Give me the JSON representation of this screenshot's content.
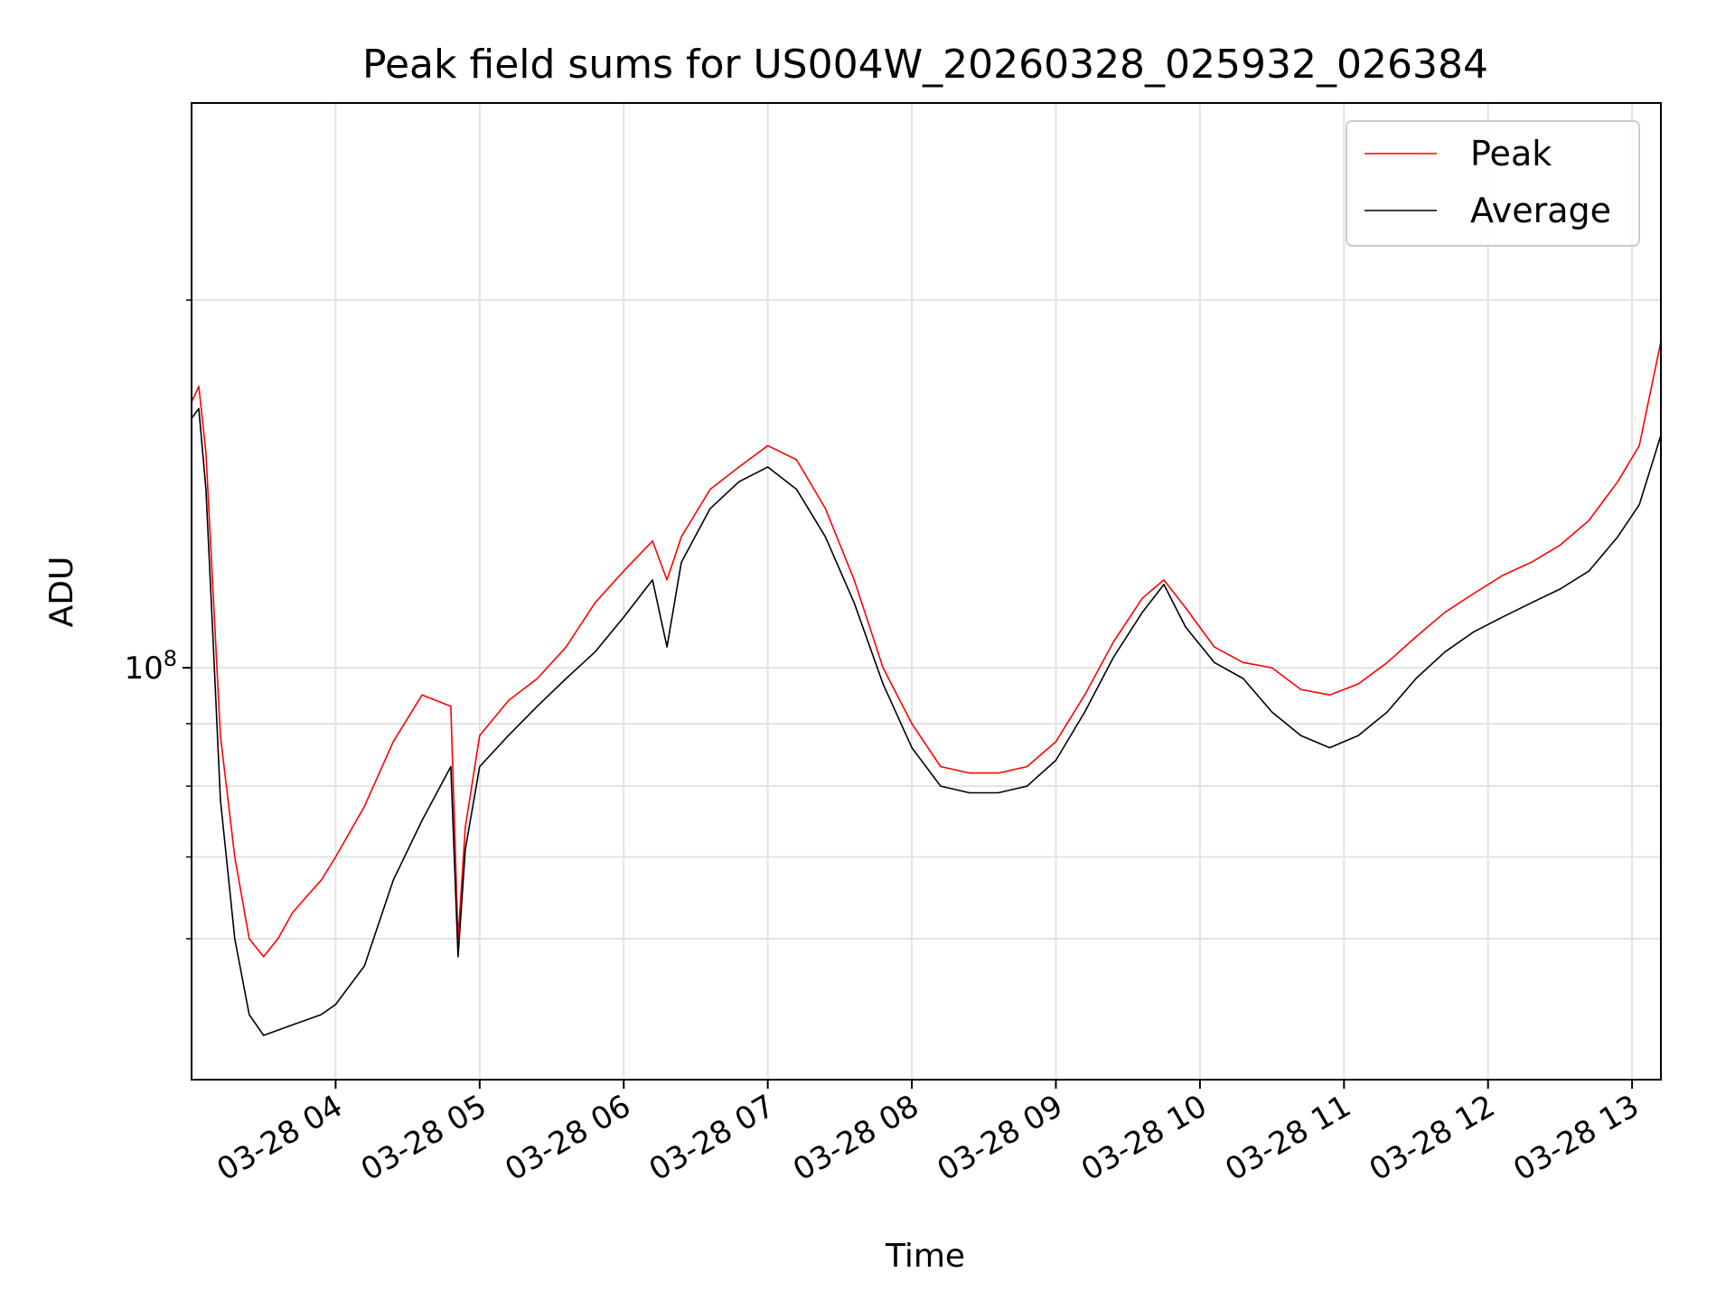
{
  "chart_data": {
    "type": "line",
    "title": "Peak field sums for US004W_20260328_025932_026384",
    "xlabel": "Time",
    "ylabel": "ADU",
    "yscale": "log",
    "ylim": [
      46000000,
      290000000
    ],
    "xlim": [
      3.0,
      13.2
    ],
    "grid": true,
    "legend_position": "upper right",
    "x_ticks": [
      {
        "value": 4,
        "label": "03-28 04"
      },
      {
        "value": 5,
        "label": "03-28 05"
      },
      {
        "value": 6,
        "label": "03-28 06"
      },
      {
        "value": 7,
        "label": "03-28 07"
      },
      {
        "value": 8,
        "label": "03-28 08"
      },
      {
        "value": 9,
        "label": "03-28 09"
      },
      {
        "value": 10,
        "label": "03-28 10"
      },
      {
        "value": 11,
        "label": "03-28 11"
      },
      {
        "value": 12,
        "label": "03-28 12"
      },
      {
        "value": 13,
        "label": "03-28 13"
      }
    ],
    "y_major_ticks": [
      {
        "value": 100000000,
        "base": "10",
        "exp": "8"
      }
    ],
    "y_minor_ticks": [
      60000000,
      70000000,
      80000000,
      90000000,
      200000000
    ],
    "series": [
      {
        "name": "Peak",
        "color": "#ff0000",
        "x": [
          3.0,
          3.05,
          3.1,
          3.15,
          3.2,
          3.3,
          3.4,
          3.5,
          3.6,
          3.7,
          3.8,
          3.9,
          4.0,
          4.2,
          4.4,
          4.6,
          4.8,
          4.85,
          4.9,
          5.0,
          5.2,
          5.4,
          5.6,
          5.8,
          6.0,
          6.2,
          6.3,
          6.4,
          6.6,
          6.8,
          7.0,
          7.2,
          7.4,
          7.6,
          7.8,
          8.0,
          8.2,
          8.4,
          8.6,
          8.8,
          9.0,
          9.2,
          9.4,
          9.6,
          9.75,
          9.9,
          10.1,
          10.3,
          10.5,
          10.7,
          10.9,
          11.1,
          11.3,
          11.5,
          11.7,
          11.9,
          12.1,
          12.3,
          12.5,
          12.7,
          12.9,
          13.05,
          13.2
        ],
        "y": [
          165000000,
          170000000,
          150000000,
          115000000,
          88000000,
          70000000,
          60000000,
          58000000,
          60000000,
          63000000,
          65000000,
          67000000,
          70000000,
          77000000,
          87000000,
          95000000,
          93000000,
          60000000,
          74000000,
          88000000,
          94000000,
          98000000,
          104000000,
          113000000,
          120000000,
          127000000,
          118000000,
          128000000,
          140000000,
          146000000,
          152000000,
          148000000,
          135000000,
          118000000,
          100000000,
          90000000,
          83000000,
          82000000,
          82000000,
          83000000,
          87000000,
          95000000,
          105000000,
          114000000,
          118000000,
          112000000,
          104000000,
          101000000,
          100000000,
          96000000,
          95000000,
          97000000,
          101000000,
          106000000,
          111000000,
          115000000,
          119000000,
          122000000,
          126000000,
          132000000,
          142000000,
          152000000,
          185000000
        ]
      },
      {
        "name": "Average",
        "color": "#000000",
        "x": [
          3.0,
          3.05,
          3.1,
          3.15,
          3.2,
          3.3,
          3.4,
          3.5,
          3.6,
          3.7,
          3.8,
          3.9,
          4.0,
          4.2,
          4.4,
          4.6,
          4.8,
          4.85,
          4.9,
          5.0,
          5.2,
          5.4,
          5.6,
          5.8,
          6.0,
          6.2,
          6.3,
          6.4,
          6.6,
          6.8,
          7.0,
          7.2,
          7.4,
          7.6,
          7.8,
          8.0,
          8.2,
          8.4,
          8.6,
          8.8,
          9.0,
          9.2,
          9.4,
          9.6,
          9.75,
          9.9,
          10.1,
          10.3,
          10.5,
          10.7,
          10.9,
          11.1,
          11.3,
          11.5,
          11.7,
          11.9,
          12.1,
          12.3,
          12.5,
          12.7,
          12.9,
          13.05,
          13.2
        ],
        "y": [
          160000000,
          163000000,
          140000000,
          105000000,
          78000000,
          60000000,
          52000000,
          50000000,
          50500000,
          51000000,
          51500000,
          52000000,
          53000000,
          57000000,
          67000000,
          75000000,
          83000000,
          58000000,
          71000000,
          83000000,
          88000000,
          93000000,
          98000000,
          103000000,
          110000000,
          118000000,
          104000000,
          122000000,
          135000000,
          142000000,
          146000000,
          140000000,
          128000000,
          113000000,
          97000000,
          86000000,
          80000000,
          79000000,
          79000000,
          80000000,
          84000000,
          92000000,
          102000000,
          111000000,
          117000000,
          108000000,
          101000000,
          98000000,
          92000000,
          88000000,
          86000000,
          88000000,
          92000000,
          98000000,
          103000000,
          107000000,
          110000000,
          113000000,
          116000000,
          120000000,
          128000000,
          136000000,
          155000000
        ]
      }
    ]
  }
}
